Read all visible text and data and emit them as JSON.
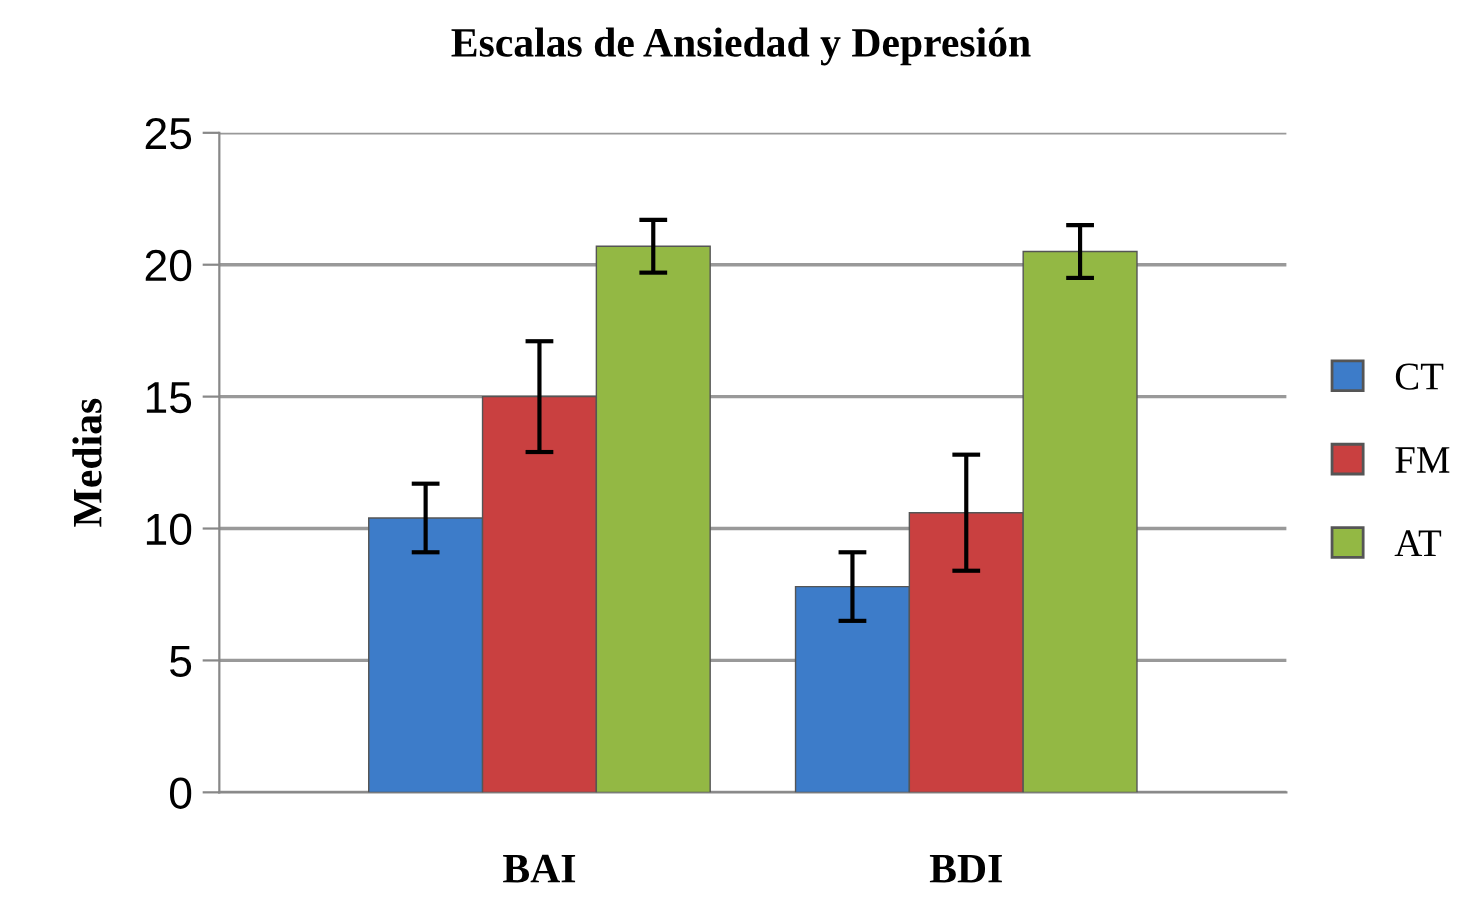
{
  "chart_data": {
    "type": "bar",
    "title": "Escalas de Ansiedad y Depresión",
    "ylabel": "Medias",
    "categories": [
      "BAI",
      "BDI"
    ],
    "series": [
      {
        "name": "CT",
        "color": "#3d7cc9",
        "values": [
          10.4,
          7.8
        ],
        "errors": [
          1.3,
          1.3
        ]
      },
      {
        "name": "FM",
        "color": "#c94040",
        "values": [
          15.0,
          10.6
        ],
        "errors": [
          2.1,
          2.2
        ]
      },
      {
        "name": "AT",
        "color": "#93b844",
        "values": [
          20.7,
          20.5
        ],
        "errors": [
          1.0,
          1.0
        ]
      }
    ],
    "ylim": [
      0,
      25
    ],
    "yticks": [
      0,
      5,
      10,
      15,
      20,
      25
    ],
    "grid": "y",
    "legend": "right"
  }
}
